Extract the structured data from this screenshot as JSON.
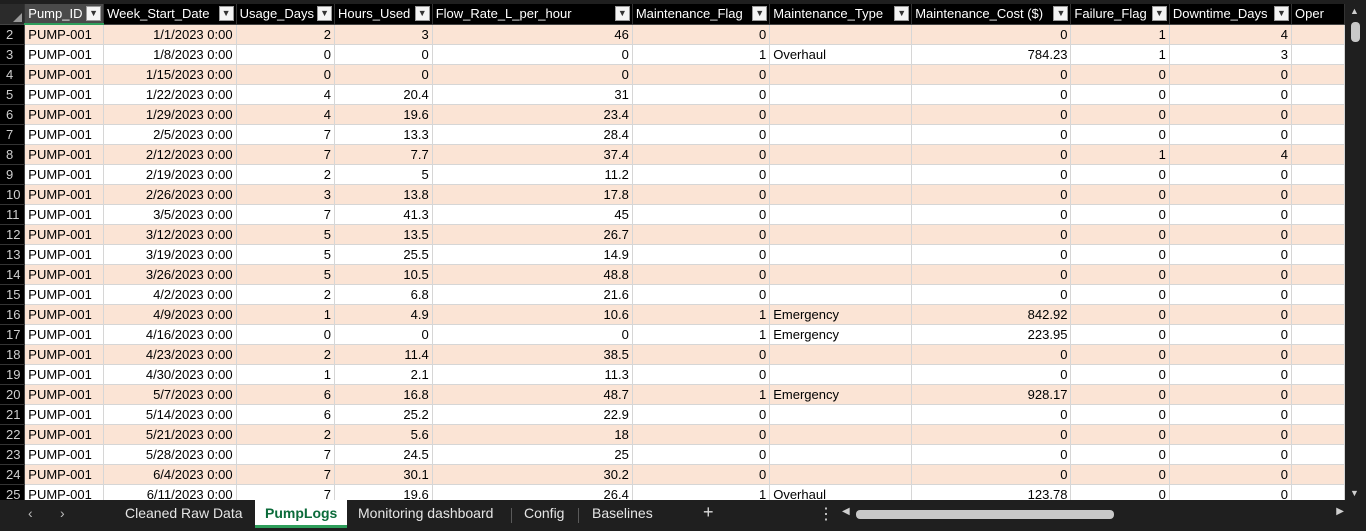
{
  "columns": [
    {
      "label": "Pump_ID",
      "selected": true
    },
    {
      "label": "Week_Start_Date"
    },
    {
      "label": "Usage_Days"
    },
    {
      "label": "Hours_Used"
    },
    {
      "label": "Flow_Rate_L_per_hour"
    },
    {
      "label": "Maintenance_Flag"
    },
    {
      "label": "Maintenance_Type"
    },
    {
      "label": "Maintenance_Cost ($)"
    },
    {
      "label": "Failure_Flag"
    },
    {
      "label": "Downtime_Days"
    },
    {
      "label": "Oper"
    }
  ],
  "rows": [
    {
      "n": "2",
      "c": [
        "PUMP-001",
        "1/1/2023 0:00",
        "2",
        "3",
        "46",
        "0",
        "",
        "0",
        "1",
        "4"
      ]
    },
    {
      "n": "3",
      "c": [
        "PUMP-001",
        "1/8/2023 0:00",
        "0",
        "0",
        "0",
        "1",
        "Overhaul",
        "784.23",
        "1",
        "3"
      ]
    },
    {
      "n": "4",
      "c": [
        "PUMP-001",
        "1/15/2023 0:00",
        "0",
        "0",
        "0",
        "0",
        "",
        "0",
        "0",
        "0"
      ]
    },
    {
      "n": "5",
      "c": [
        "PUMP-001",
        "1/22/2023 0:00",
        "4",
        "20.4",
        "31",
        "0",
        "",
        "0",
        "0",
        "0"
      ]
    },
    {
      "n": "6",
      "c": [
        "PUMP-001",
        "1/29/2023 0:00",
        "4",
        "19.6",
        "23.4",
        "0",
        "",
        "0",
        "0",
        "0"
      ]
    },
    {
      "n": "7",
      "c": [
        "PUMP-001",
        "2/5/2023 0:00",
        "7",
        "13.3",
        "28.4",
        "0",
        "",
        "0",
        "0",
        "0"
      ]
    },
    {
      "n": "8",
      "c": [
        "PUMP-001",
        "2/12/2023 0:00",
        "7",
        "7.7",
        "37.4",
        "0",
        "",
        "0",
        "1",
        "4"
      ]
    },
    {
      "n": "9",
      "c": [
        "PUMP-001",
        "2/19/2023 0:00",
        "2",
        "5",
        "11.2",
        "0",
        "",
        "0",
        "0",
        "0"
      ]
    },
    {
      "n": "10",
      "c": [
        "PUMP-001",
        "2/26/2023 0:00",
        "3",
        "13.8",
        "17.8",
        "0",
        "",
        "0",
        "0",
        "0"
      ]
    },
    {
      "n": "11",
      "c": [
        "PUMP-001",
        "3/5/2023 0:00",
        "7",
        "41.3",
        "45",
        "0",
        "",
        "0",
        "0",
        "0"
      ]
    },
    {
      "n": "12",
      "c": [
        "PUMP-001",
        "3/12/2023 0:00",
        "5",
        "13.5",
        "26.7",
        "0",
        "",
        "0",
        "0",
        "0"
      ]
    },
    {
      "n": "13",
      "c": [
        "PUMP-001",
        "3/19/2023 0:00",
        "5",
        "25.5",
        "14.9",
        "0",
        "",
        "0",
        "0",
        "0"
      ]
    },
    {
      "n": "14",
      "c": [
        "PUMP-001",
        "3/26/2023 0:00",
        "5",
        "10.5",
        "48.8",
        "0",
        "",
        "0",
        "0",
        "0"
      ]
    },
    {
      "n": "15",
      "c": [
        "PUMP-001",
        "4/2/2023 0:00",
        "2",
        "6.8",
        "21.6",
        "0",
        "",
        "0",
        "0",
        "0"
      ]
    },
    {
      "n": "16",
      "c": [
        "PUMP-001",
        "4/9/2023 0:00",
        "1",
        "4.9",
        "10.6",
        "1",
        "Emergency",
        "842.92",
        "0",
        "0"
      ]
    },
    {
      "n": "17",
      "c": [
        "PUMP-001",
        "4/16/2023 0:00",
        "0",
        "0",
        "0",
        "1",
        "Emergency",
        "223.95",
        "0",
        "0"
      ]
    },
    {
      "n": "18",
      "c": [
        "PUMP-001",
        "4/23/2023 0:00",
        "2",
        "11.4",
        "38.5",
        "0",
        "",
        "0",
        "0",
        "0"
      ]
    },
    {
      "n": "19",
      "c": [
        "PUMP-001",
        "4/30/2023 0:00",
        "1",
        "2.1",
        "11.3",
        "0",
        "",
        "0",
        "0",
        "0"
      ]
    },
    {
      "n": "20",
      "c": [
        "PUMP-001",
        "5/7/2023 0:00",
        "6",
        "16.8",
        "48.7",
        "1",
        "Emergency",
        "928.17",
        "0",
        "0"
      ]
    },
    {
      "n": "21",
      "c": [
        "PUMP-001",
        "5/14/2023 0:00",
        "6",
        "25.2",
        "22.9",
        "0",
        "",
        "0",
        "0",
        "0"
      ]
    },
    {
      "n": "22",
      "c": [
        "PUMP-001",
        "5/21/2023 0:00",
        "2",
        "5.6",
        "18",
        "0",
        "",
        "0",
        "0",
        "0"
      ]
    },
    {
      "n": "23",
      "c": [
        "PUMP-001",
        "5/28/2023 0:00",
        "7",
        "24.5",
        "25",
        "0",
        "",
        "0",
        "0",
        "0"
      ]
    },
    {
      "n": "24",
      "c": [
        "PUMP-001",
        "6/4/2023 0:00",
        "7",
        "30.1",
        "30.2",
        "0",
        "",
        "0",
        "0",
        "0"
      ]
    },
    {
      "n": "25",
      "c": [
        "PUMP-001",
        "6/11/2023 0:00",
        "7",
        "19.6",
        "26.4",
        "1",
        "Overhaul",
        "123.78",
        "0",
        "0"
      ]
    }
  ],
  "tabs": [
    {
      "label": "Cleaned Raw Data"
    },
    {
      "label": "PumpLogs",
      "active": true
    },
    {
      "label": "Monitoring dashboard"
    },
    {
      "label": "Config"
    },
    {
      "label": "Baselines"
    }
  ],
  "colors": {
    "band": "#fbe4d5",
    "active_tab": "#0b6b3a",
    "accent": "#2e9e5b"
  },
  "icons": {
    "prev": "chevron-left-icon",
    "next": "chevron-right-icon",
    "add": "plus-icon",
    "more": "more-dots-icon",
    "filter": "filter-dropdown-icon"
  }
}
